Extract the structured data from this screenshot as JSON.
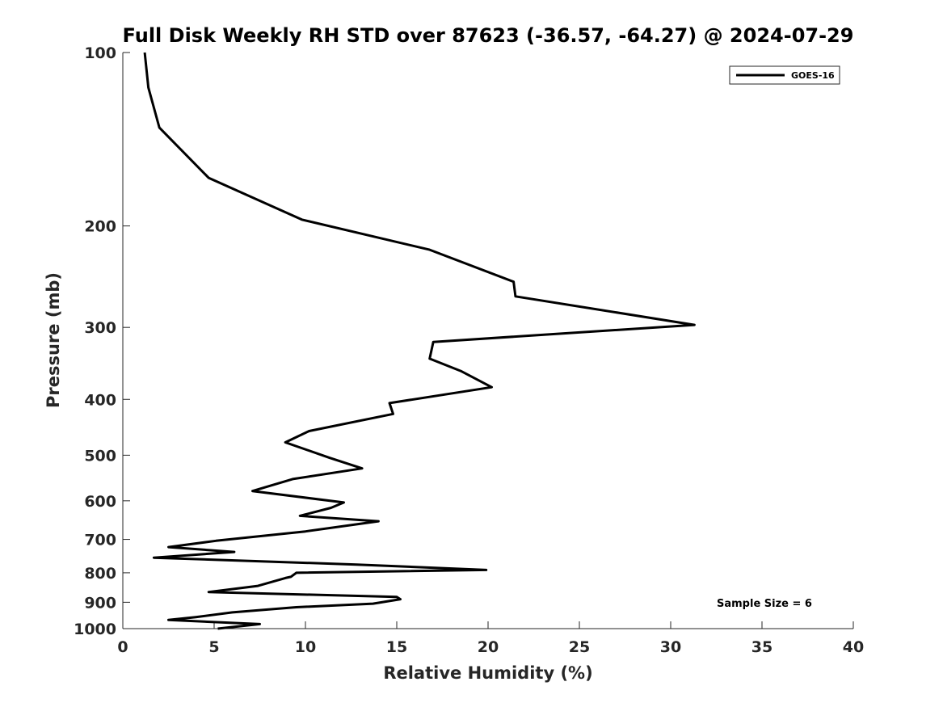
{
  "chart_data": {
    "type": "line",
    "title": "Full Disk Weekly RH STD over 87623 (-36.57, -64.27) @ 2024-07-29",
    "xlabel": "Relative Humidity (%)",
    "ylabel": "Pressure (mb)",
    "xlim": [
      0,
      40
    ],
    "ylim": [
      100,
      1000
    ],
    "yscale": "log",
    "y_reversed": true,
    "grid": false,
    "legend_position": "top-right",
    "x_ticks": [
      "0",
      "5",
      "10",
      "15",
      "20",
      "25",
      "30",
      "35",
      "40"
    ],
    "y_ticks": [
      "100",
      "200",
      "300",
      "400",
      "500",
      "600",
      "700",
      "800",
      "900",
      "1000"
    ],
    "annotation": "Sample Size = 6",
    "series": [
      {
        "name": "GOES-16",
        "color": "#000000",
        "points": [
          [
            1.2,
            100
          ],
          [
            1.4,
            115
          ],
          [
            2.0,
            135
          ],
          [
            4.7,
            165
          ],
          [
            9.8,
            195
          ],
          [
            16.8,
            220
          ],
          [
            21.4,
            250
          ],
          [
            21.5,
            265
          ],
          [
            31.3,
            297
          ],
          [
            17.0,
            318
          ],
          [
            16.8,
            340
          ],
          [
            18.5,
            357
          ],
          [
            20.2,
            381
          ],
          [
            14.6,
            406
          ],
          [
            14.8,
            424
          ],
          [
            10.2,
            454
          ],
          [
            8.9,
            475
          ],
          [
            11.3,
            505
          ],
          [
            13.1,
            527
          ],
          [
            9.3,
            550
          ],
          [
            7.1,
            577
          ],
          [
            12.1,
            604
          ],
          [
            11.4,
            617
          ],
          [
            9.7,
            637
          ],
          [
            14.0,
            651
          ],
          [
            10.0,
            678
          ],
          [
            5.1,
            704
          ],
          [
            2.5,
            722
          ],
          [
            6.1,
            736
          ],
          [
            1.7,
            753
          ],
          [
            12.8,
            774
          ],
          [
            19.9,
            791
          ],
          [
            9.5,
            800
          ],
          [
            9.2,
            813
          ],
          [
            8.9,
            817
          ],
          [
            7.4,
            843
          ],
          [
            4.7,
            864
          ],
          [
            15.0,
            881
          ],
          [
            15.2,
            889
          ],
          [
            13.7,
            905
          ],
          [
            9.5,
            918
          ],
          [
            6.0,
            937
          ],
          [
            4.0,
            955
          ],
          [
            2.5,
            966
          ],
          [
            7.5,
            982
          ],
          [
            5.2,
            1000
          ]
        ]
      }
    ]
  }
}
